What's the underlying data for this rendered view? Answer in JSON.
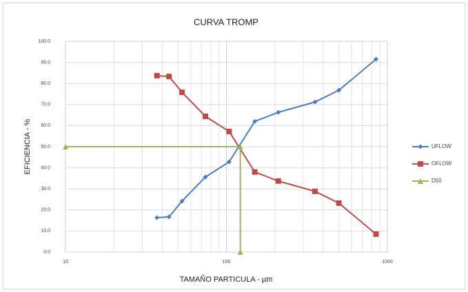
{
  "chart_data": {
    "type": "line",
    "title": "CURVA TROMP",
    "xlabel": "TAMAÑO PARTICULA - µm",
    "ylabel": "EFICIENCIA - %",
    "xscale": "log",
    "xlim": [
      10,
      1000
    ],
    "xticks": [
      10,
      100,
      1000
    ],
    "ylim": [
      0,
      100
    ],
    "yticks": [
      {
        "value": 0,
        "label": "0.0"
      },
      {
        "value": 10,
        "label": "10.0"
      },
      {
        "value": 20,
        "label": "20.0"
      },
      {
        "value": 30,
        "label": "30.0"
      },
      {
        "value": 40,
        "label": "40.0"
      },
      {
        "value": 50,
        "label": "50.0"
      },
      {
        "value": 60,
        "label": "60.0"
      },
      {
        "value": 70,
        "label": "70.0"
      },
      {
        "value": 80,
        "label": "80.0"
      },
      {
        "value": 90,
        "label": "90.0"
      },
      {
        "value": 100,
        "label": "100.0"
      }
    ],
    "grid": true,
    "legend": "right",
    "series": [
      {
        "name": "UFLOW",
        "color": "#4a7ebb",
        "marker": "diamond",
        "x": [
          37,
          44,
          53,
          74,
          104,
          150,
          210,
          355,
          500,
          850
        ],
        "values": [
          16.3,
          16.7,
          24.2,
          35.6,
          42.8,
          62,
          66.3,
          71.2,
          76.8,
          91.5
        ]
      },
      {
        "name": "OFLOW",
        "color": "#be4b48",
        "marker": "square",
        "x": [
          37,
          44,
          53,
          74,
          104,
          150,
          210,
          355,
          500,
          850
        ],
        "values": [
          83.7,
          83.3,
          75.8,
          64.4,
          57.2,
          38,
          33.7,
          28.8,
          23.2,
          8.5
        ]
      },
      {
        "name": "D50",
        "color": "#98b954",
        "marker": "triangle",
        "x": [
          10,
          122,
          122
        ],
        "values": [
          50,
          50,
          0
        ]
      }
    ]
  }
}
